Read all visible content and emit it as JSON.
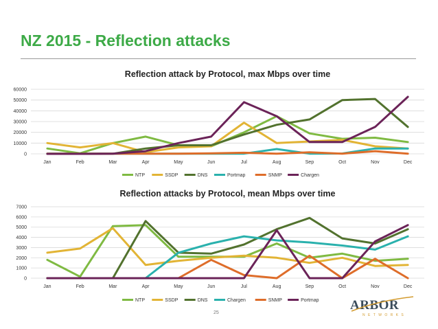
{
  "slide": {
    "title": "NZ 2015 - Reflection attacks",
    "page_number": "25",
    "logo_text": "ARBOR",
    "logo_sub": "NETWORKS"
  },
  "chart_data": [
    {
      "type": "line",
      "title": "Reflection attack by Protocol, max Mbps over time",
      "categories": [
        "Jan",
        "Feb",
        "Mar",
        "Apr",
        "May",
        "Jun",
        "Jul",
        "Aug",
        "Sep",
        "Oct",
        "Nov",
        "Dec"
      ],
      "ylim": [
        0,
        60000
      ],
      "yticks": [
        0,
        10000,
        20000,
        30000,
        40000,
        50000,
        60000
      ],
      "ytick_labels": [
        "0",
        "10000",
        "20000",
        "30000",
        "40000",
        "50000",
        "60000"
      ],
      "legend_position": "bottom",
      "series": [
        {
          "name": "NTP",
          "color": "#7fba42",
          "values": [
            5000,
            500,
            10000,
            16000,
            8000,
            7000,
            20000,
            35000,
            19000,
            14000,
            15000,
            11000
          ]
        },
        {
          "name": "SSDP",
          "color": "#e2b435",
          "values": [
            10000,
            6000,
            10000,
            1500,
            6000,
            7000,
            29000,
            10000,
            11500,
            13000,
            7000,
            5000
          ]
        },
        {
          "name": "DNS",
          "color": "#52722e",
          "values": [
            200,
            100,
            100,
            5000,
            8000,
            8000,
            18000,
            27000,
            32000,
            50000,
            51000,
            25000
          ]
        },
        {
          "name": "Portmap",
          "color": "#2ab1ad",
          "values": [
            100,
            100,
            100,
            200,
            200,
            200,
            200,
            4500,
            200,
            300,
            5000,
            5000
          ]
        },
        {
          "name": "SNMP",
          "color": "#de6d2a",
          "values": [
            100,
            100,
            100,
            200,
            200,
            500,
            1000,
            200,
            1500,
            200,
            2500,
            200
          ]
        },
        {
          "name": "Chargen",
          "color": "#6b2358",
          "values": [
            0,
            0,
            100,
            2500,
            10000,
            16000,
            48000,
            35000,
            11000,
            11000,
            25000,
            53000
          ]
        }
      ]
    },
    {
      "type": "line",
      "title": "Reflection attacks by Protocol, mean Mbps over time",
      "categories": [
        "Jan",
        "Feb",
        "Mar",
        "Apr",
        "May",
        "Jun",
        "Jul",
        "Aug",
        "Sep",
        "Oct",
        "Nov",
        "Dec"
      ],
      "ylim": [
        0,
        7000
      ],
      "yticks": [
        0,
        1000,
        2000,
        3000,
        4000,
        5000,
        6000,
        7000
      ],
      "ytick_labels": [
        "0",
        "1000",
        "2000",
        "3000",
        "4000",
        "5000",
        "6000",
        "7000"
      ],
      "legend_position": "bottom",
      "series": [
        {
          "name": "NTP",
          "color": "#7fba42",
          "values": [
            1800,
            150,
            5100,
            5200,
            2100,
            2100,
            2100,
            3400,
            2000,
            2400,
            1700,
            1900
          ]
        },
        {
          "name": "SSDP",
          "color": "#e2b435",
          "values": [
            2500,
            2900,
            4900,
            1300,
            1700,
            2000,
            2200,
            2000,
            1500,
            2000,
            1200,
            1300
          ]
        },
        {
          "name": "DNS",
          "color": "#52722e",
          "values": [
            0,
            0,
            0,
            5600,
            2500,
            2400,
            3300,
            4800,
            5900,
            3900,
            3400,
            4800
          ]
        },
        {
          "name": "Chargen",
          "color": "#2ab1ad",
          "values": [
            0,
            0,
            0,
            0,
            2500,
            3400,
            4100,
            3700,
            3500,
            3200,
            2800,
            4100
          ]
        },
        {
          "name": "SNMP",
          "color": "#de6d2a",
          "values": [
            0,
            0,
            0,
            0,
            0,
            1800,
            300,
            0,
            2200,
            0,
            1900,
            0
          ]
        },
        {
          "name": "Portmap",
          "color": "#6b2358",
          "values": [
            0,
            0,
            0,
            0,
            0,
            0,
            0,
            4700,
            0,
            0,
            3600,
            5200
          ]
        }
      ]
    }
  ]
}
